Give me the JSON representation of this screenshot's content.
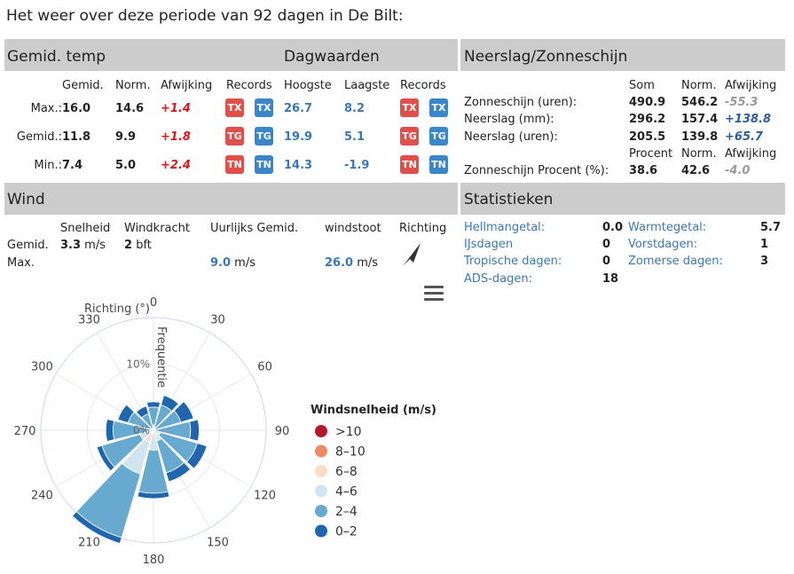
{
  "page_title": "Het weer over deze periode van 92 dagen in De Bilt:",
  "temp": {
    "title": "Gemid. temp",
    "day_title": "Dagwaarden",
    "headers": {
      "gemid": "Gemid.",
      "norm": "Norm.",
      "afw": "Afwijking",
      "records": "Records",
      "hoogste": "Hoogste",
      "laagste": "Laagste",
      "records2": "Records"
    },
    "rows": [
      {
        "label": "Max.:",
        "gemid": "16.0",
        "norm": "14.6",
        "afw": "+1.4",
        "badge": "TX",
        "hoogste": "26.7",
        "laagste": "8.2"
      },
      {
        "label": "Gemid.:",
        "gemid": "11.8",
        "norm": "9.9",
        "afw": "+1.8",
        "badge": "TG",
        "hoogste": "19.9",
        "laagste": "5.1"
      },
      {
        "label": "Min.:",
        "gemid": "7.4",
        "norm": "5.0",
        "afw": "+2.4",
        "badge": "TN",
        "hoogste": "14.3",
        "laagste": "-1.9"
      }
    ]
  },
  "neerslag": {
    "title": "Neerslag/Zonneschijn",
    "headers": {
      "som": "Som",
      "norm": "Norm.",
      "afw": "Afwijking"
    },
    "rows": [
      {
        "label": "Zonneschijn (uren):",
        "som": "490.9",
        "norm": "546.2",
        "afw": "-55.3"
      },
      {
        "label": "Neerslag (mm):",
        "som": "296.2",
        "norm": "157.4",
        "afw": "+138.8"
      },
      {
        "label": "Neerslag (uren):",
        "som": "205.5",
        "norm": "139.8",
        "afw": "+65.7"
      }
    ],
    "headers2": {
      "procent": "Procent",
      "norm": "Norm.",
      "afw": "Afwijking"
    },
    "row2": {
      "label": "Zonneschijn Procent (%):",
      "procent": "38.6",
      "norm": "42.6",
      "afw": "-4.0"
    }
  },
  "wind": {
    "title": "Wind",
    "headers": {
      "snelheid": "Snelheid",
      "windkracht": "Windkracht",
      "uurlijks": "Uurlijks Gemid.",
      "windstoot": "windstoot",
      "richting": "Richting"
    },
    "gemid": {
      "label": "Gemid.",
      "snelheid": "3.3",
      "snelheid_unit": "m/s",
      "windkracht": "2",
      "windkracht_unit": "bft"
    },
    "max": {
      "label": "Max.",
      "uurlijks": "9.0",
      "uurlijks_unit": "m/s",
      "windstoot": "26.0",
      "windstoot_unit": "m/s"
    },
    "direction_icon": "navigation-arrow-icon"
  },
  "statistieken": {
    "title": "Statistieken",
    "left": [
      {
        "label": "Hellmangetal:",
        "value": "0.0"
      },
      {
        "label": "IJsdagen",
        "value": "0"
      },
      {
        "label": "Tropische dagen:",
        "value": "0"
      },
      {
        "label": "ADS-dagen:",
        "value": "18"
      }
    ],
    "right": [
      {
        "label": "Warmtegetal:",
        "value": "5.7"
      },
      {
        "label": "Vorstdagen:",
        "value": "1"
      },
      {
        "label": "Zomerse dagen:",
        "value": "3"
      }
    ]
  },
  "chart_data": {
    "type": "windrose",
    "xlabel": "Richting (°)",
    "ylabel": "Frequentie",
    "direction_labels": [
      "0",
      "30",
      "60",
      "90",
      "120",
      "150",
      "180",
      "210",
      "240",
      "270",
      "300",
      "330"
    ],
    "directions": [
      0,
      30,
      60,
      90,
      120,
      150,
      180,
      210,
      240,
      270,
      300,
      330
    ],
    "radial_ticks": [
      "0%",
      "10%"
    ],
    "radial_tick_values": [
      0,
      10
    ],
    "rmax": 17,
    "legend_title": "Windsnelheid (m/s)",
    "series": [
      {
        "name": "0-2",
        "color": "#2166ac",
        "values": [
          0.8,
          1.5,
          2.0,
          1.3,
          1.5,
          1.4,
          0.8,
          0.9,
          0.8,
          1.1,
          1.6,
          1.2
        ]
      },
      {
        "name": "2-4",
        "color": "#67a9cf",
        "values": [
          2.7,
          3.5,
          4.0,
          5.2,
          5.8,
          5.0,
          6.5,
          10.0,
          6.0,
          5.1,
          3.5,
          2.3
        ]
      },
      {
        "name": "4-6",
        "color": "#d1e5f0",
        "values": [
          0.7,
          0.5,
          0.3,
          0.4,
          1.0,
          1.5,
          2.5,
          5.0,
          1.5,
          0.8,
          0.4,
          0.3
        ]
      },
      {
        "name": "6-8",
        "color": "#fddbc7",
        "values": [
          0.1,
          0,
          0,
          0,
          0.1,
          0.2,
          0.4,
          1.5,
          0.5,
          0.2,
          0.1,
          0
        ]
      },
      {
        "name": "8-10",
        "color": "#ef8a62",
        "values": [
          0,
          0,
          0,
          0,
          0,
          0,
          0.1,
          0.3,
          0.1,
          0,
          0,
          0
        ]
      },
      {
        "name": ">10",
        "color": "#b2182b",
        "values": [
          0,
          0,
          0,
          0,
          0,
          0,
          0,
          0.1,
          0,
          0,
          0,
          0
        ]
      }
    ],
    "legend_order": [
      ">10",
      "8-10",
      "6-8",
      "4-6",
      "2-4",
      "0-2"
    ],
    "legend_labels": [
      ">10",
      "8–10",
      "6–8",
      "4–6",
      "2–4",
      "0–2"
    ]
  }
}
